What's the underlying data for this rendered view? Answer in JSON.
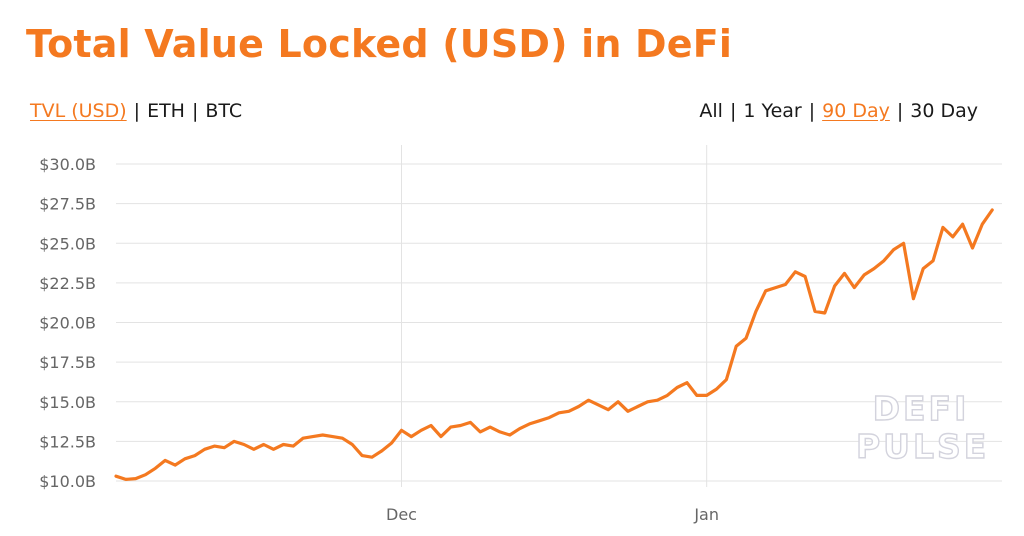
{
  "title": "Total Value Locked (USD) in DeFi",
  "unit_tabs": [
    {
      "label": "TVL (USD)",
      "active": true
    },
    {
      "label": "ETH",
      "active": false
    },
    {
      "label": "BTC",
      "active": false
    }
  ],
  "range_tabs": [
    {
      "label": "All",
      "active": false
    },
    {
      "label": "1 Year",
      "active": false
    },
    {
      "label": "90 Day",
      "active": true
    },
    {
      "label": "30 Day",
      "active": false
    }
  ],
  "separator": "|",
  "watermark": [
    "DEFI",
    "PULSE"
  ],
  "colors": {
    "accent": "#f47920",
    "grid": "#e3e3e3",
    "tick_text": "#666666",
    "watermark_outline": "#d3d3dd"
  },
  "chart_data": {
    "type": "line",
    "title": "Total Value Locked (USD) in DeFi",
    "x_unit": "day",
    "x_range": [
      0,
      90
    ],
    "x_ticks": [
      {
        "x": 29,
        "label": "Dec"
      },
      {
        "x": 60,
        "label": "Jan"
      }
    ],
    "ylim": [
      10,
      30
    ],
    "y_ticks": [
      {
        "value": 30.0,
        "label": "$30.0B"
      },
      {
        "value": 27.5,
        "label": "$27.5B"
      },
      {
        "value": 25.0,
        "label": "$25.0B"
      },
      {
        "value": 22.5,
        "label": "$22.5B"
      },
      {
        "value": 20.0,
        "label": "$20.0B"
      },
      {
        "value": 17.5,
        "label": "$17.5B"
      },
      {
        "value": 15.0,
        "label": "$15.0B"
      },
      {
        "value": 12.5,
        "label": "$12.5B"
      },
      {
        "value": 10.0,
        "label": "$10.0B"
      }
    ],
    "grid": true,
    "legend": "none",
    "series": [
      {
        "color": "#f47920",
        "x": [
          0,
          1,
          2,
          3,
          4,
          5,
          6,
          7,
          8,
          9,
          10,
          11,
          12,
          13,
          14,
          15,
          16,
          17,
          18,
          19,
          20,
          21,
          22,
          23,
          24,
          25,
          26,
          27,
          28,
          29,
          30,
          31,
          32,
          33,
          34,
          35,
          36,
          37,
          38,
          39,
          40,
          41,
          42,
          43,
          44,
          45,
          46,
          47,
          48,
          49,
          50,
          51,
          52,
          53,
          54,
          55,
          56,
          57,
          58,
          59,
          60,
          61,
          62,
          63,
          64,
          65,
          66,
          67,
          68,
          69,
          70,
          71,
          72,
          73,
          74,
          75,
          76,
          77,
          78,
          79,
          80,
          81,
          82,
          83,
          84,
          85,
          86,
          87,
          88,
          89
        ],
        "values": [
          10.3,
          10.1,
          10.15,
          10.4,
          10.8,
          11.3,
          11.0,
          11.4,
          11.6,
          12.0,
          12.2,
          12.1,
          12.5,
          12.3,
          12.0,
          12.3,
          12.0,
          12.3,
          12.2,
          12.7,
          12.8,
          12.9,
          12.8,
          12.7,
          12.3,
          11.6,
          11.5,
          11.9,
          12.4,
          13.2,
          12.8,
          13.2,
          13.5,
          12.8,
          13.4,
          13.5,
          13.7,
          13.1,
          13.4,
          13.1,
          12.9,
          13.3,
          13.6,
          13.8,
          14.0,
          14.3,
          14.4,
          14.7,
          15.1,
          14.8,
          14.5,
          15.0,
          14.4,
          14.7,
          15.0,
          15.1,
          15.4,
          15.9,
          16.2,
          15.4,
          15.4,
          15.8,
          16.4,
          18.5,
          19.0,
          20.7,
          22.0,
          22.2,
          22.4,
          23.2,
          22.9,
          20.7,
          20.6,
          22.3,
          23.1,
          22.2,
          23.0,
          23.4,
          23.9,
          24.6,
          25.0,
          21.5,
          23.4,
          23.9,
          26.0,
          25.4,
          26.2,
          24.7,
          26.2,
          27.1
        ]
      }
    ]
  }
}
